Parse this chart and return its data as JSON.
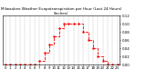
{
  "title": "Milwaukee Weather Evapotranspiration per Hour (Last 24 Hours) (Inches)",
  "hours": [
    0,
    1,
    2,
    3,
    4,
    5,
    6,
    7,
    8,
    9,
    10,
    11,
    12,
    13,
    14,
    15,
    16,
    17,
    18,
    19,
    20,
    21,
    22,
    23
  ],
  "values": [
    0,
    0,
    0,
    0,
    0,
    0,
    0,
    0.01,
    0.03,
    0.05,
    0.07,
    0.09,
    0.1,
    0.1,
    0.1,
    0.1,
    0.08,
    0.06,
    0.04,
    0.02,
    0.01,
    0,
    0,
    0
  ],
  "line_color": "#ff0000",
  "line_style": "--",
  "line_width": 0.6,
  "marker": ".",
  "marker_size": 1.5,
  "grid_color": "#888888",
  "grid_style": "--",
  "background_color": "#ffffff",
  "ylim": [
    0,
    0.12
  ],
  "yticks": [
    0.0,
    0.02,
    0.04,
    0.06,
    0.08,
    0.1,
    0.12
  ],
  "ytick_labels": [
    "0.00",
    "0.02",
    "0.04",
    "0.06",
    "0.08",
    "0.10",
    "0.12"
  ],
  "title_fontsize": 3.0,
  "tick_fontsize": 2.8,
  "label_fontsize": 2.8,
  "grid_linewidth": 0.25,
  "spine_linewidth": 0.4
}
